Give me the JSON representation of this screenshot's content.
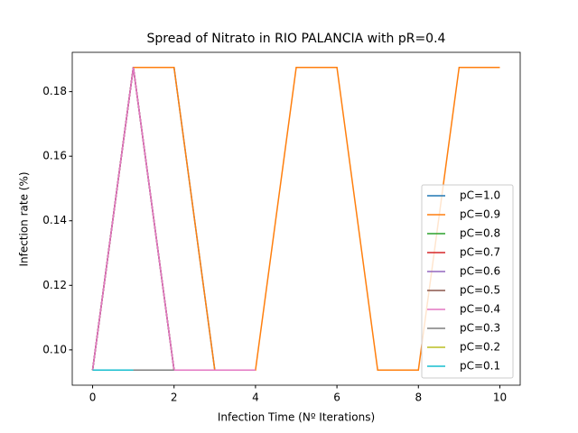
{
  "chart_data": {
    "type": "line",
    "title": "Spread of Nitrato in RIO PALANCIA with pR=0.4",
    "xlabel": "Infection Time (Nº Iterations)",
    "ylabel": "Infection rate (%)",
    "x": [
      0,
      1,
      2,
      3,
      4,
      5,
      6,
      7,
      8,
      9,
      10
    ],
    "xlim": [
      -0.5,
      10.5
    ],
    "xticks": [
      0,
      2,
      4,
      6,
      8,
      10
    ],
    "ylim": [
      0.0890625,
      0.1921875
    ],
    "yticks": [
      {
        "value": 0.1,
        "label": "0.10"
      },
      {
        "value": 0.12,
        "label": "0.12"
      },
      {
        "value": 0.14,
        "label": "0.14"
      },
      {
        "value": 0.16,
        "label": "0.16"
      },
      {
        "value": 0.18,
        "label": "0.18"
      }
    ],
    "legend": "lower right",
    "series": [
      {
        "name": "pC=1.0",
        "color": "#1f77b4",
        "values": [
          0.09375,
          0.1875,
          0.1875,
          0.09375,
          null,
          null,
          null,
          null,
          null,
          null,
          null
        ]
      },
      {
        "name": "pC=0.9",
        "color": "#ff7f0e",
        "values": [
          0.09375,
          0.1875,
          0.1875,
          0.09375,
          0.09375,
          0.1875,
          0.1875,
          0.09375,
          0.09375,
          0.1875,
          0.1875
        ]
      },
      {
        "name": "pC=0.8",
        "color": "#2ca02c",
        "values": [
          0.09375,
          0.1875,
          0.09375,
          null,
          null,
          null,
          null,
          null,
          null,
          null,
          null
        ]
      },
      {
        "name": "pC=0.7",
        "color": "#d62728",
        "values": [
          0.09375,
          0.1875,
          0.09375,
          null,
          null,
          null,
          null,
          null,
          null,
          null,
          null
        ]
      },
      {
        "name": "pC=0.6",
        "color": "#9467bd",
        "values": [
          0.09375,
          0.1875,
          0.09375,
          null,
          null,
          null,
          null,
          null,
          null,
          null,
          null
        ]
      },
      {
        "name": "pC=0.5",
        "color": "#8c564b",
        "values": [
          0.09375,
          0.1875,
          0.09375,
          null,
          null,
          null,
          null,
          null,
          null,
          null,
          null
        ]
      },
      {
        "name": "pC=0.4",
        "color": "#e377c2",
        "values": [
          0.09375,
          0.1875,
          0.09375,
          0.09375,
          0.09375,
          null,
          null,
          null,
          null,
          null,
          null
        ]
      },
      {
        "name": "pC=0.3",
        "color": "#7f7f7f",
        "values": [
          0.09375,
          0.09375,
          0.09375,
          null,
          null,
          null,
          null,
          null,
          null,
          null,
          null
        ]
      },
      {
        "name": "pC=0.2",
        "color": "#bcbd22",
        "values": [
          0.09375,
          0.09375,
          null,
          null,
          null,
          null,
          null,
          null,
          null,
          null,
          null
        ]
      },
      {
        "name": "pC=0.1",
        "color": "#17becf",
        "values": [
          0.09375,
          0.09375,
          null,
          null,
          null,
          null,
          null,
          null,
          null,
          null,
          null
        ]
      }
    ]
  }
}
